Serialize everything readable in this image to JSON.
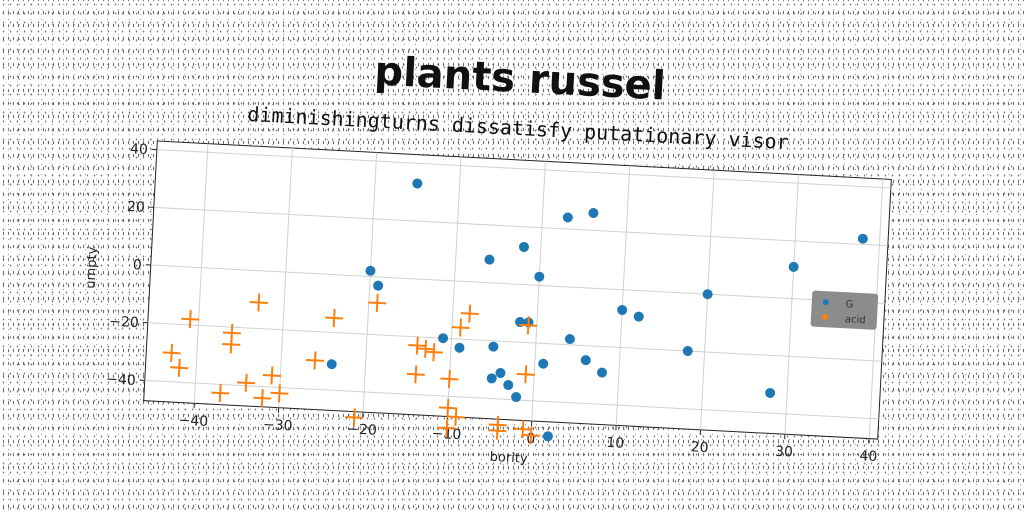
{
  "chart_data": {
    "type": "scatter",
    "title": "plants russel",
    "subtitle": "diminishingturns dissatisfy putationary visor",
    "xlabel": "bority",
    "ylabel": "umpty",
    "xlim": [
      -46,
      41
    ],
    "ylim": [
      -47,
      43
    ],
    "xticks": [
      -40,
      -30,
      -20,
      -10,
      0,
      10,
      20,
      30,
      40
    ],
    "yticks": [
      -40,
      -20,
      0,
      20,
      40
    ],
    "grid": true,
    "legend_position": "right",
    "series": [
      {
        "name": "G",
        "marker": "circle",
        "color": "#1f77b4",
        "points": [
          [
            -15,
            33
          ],
          [
            3,
            24
          ],
          [
            6,
            26
          ],
          [
            38,
            22
          ],
          [
            -2,
            13
          ],
          [
            30,
            11
          ],
          [
            -6,
            8
          ],
          [
            -20,
            2
          ],
          [
            0,
            3
          ],
          [
            -19,
            -3
          ],
          [
            20,
            0
          ],
          [
            10,
            -7
          ],
          [
            12,
            -9
          ],
          [
            -2,
            -13
          ],
          [
            -1,
            -13
          ],
          [
            -11,
            -20
          ],
          [
            4,
            -18
          ],
          [
            18,
            -20
          ],
          [
            -5,
            -22
          ],
          [
            -9,
            -23
          ],
          [
            -24,
            -31
          ],
          [
            6,
            -25
          ],
          [
            -4,
            -31
          ],
          [
            8,
            -29
          ],
          [
            1,
            -27
          ],
          [
            -5,
            -33
          ],
          [
            -3,
            -35
          ],
          [
            -2,
            -39
          ],
          [
            28,
            -33
          ],
          [
            2,
            -52
          ]
        ]
      },
      {
        "name": "acid",
        "marker": "plus",
        "color": "#ff7f0e",
        "points": [
          [
            -33,
            -11
          ],
          [
            -41,
            -18
          ],
          [
            -19,
            -9
          ],
          [
            -24,
            -15
          ],
          [
            -8,
            -11
          ],
          [
            -9,
            -16
          ],
          [
            -1,
            -14
          ],
          [
            -36,
            -22
          ],
          [
            -36,
            -26
          ],
          [
            -14,
            -23
          ],
          [
            -13,
            -24
          ],
          [
            -12,
            -25
          ],
          [
            -43,
            -30
          ],
          [
            -42,
            -35
          ],
          [
            -31,
            -36
          ],
          [
            -34,
            -39
          ],
          [
            -30,
            -42
          ],
          [
            -32,
            -44
          ],
          [
            -37,
            -43
          ],
          [
            -26,
            -30
          ],
          [
            -14,
            -33
          ],
          [
            -10,
            -34
          ],
          [
            -1,
            -31
          ],
          [
            -10,
            -44
          ],
          [
            -9,
            -47
          ],
          [
            -21,
            -49
          ],
          [
            -10,
            -51
          ],
          [
            -4,
            -49
          ],
          [
            -4,
            -51
          ],
          [
            -1,
            -50
          ],
          [
            0,
            -52
          ]
        ]
      }
    ],
    "colors": {
      "G": "#1f77b4",
      "acid": "#ff7f0e",
      "grid": "#d0d0d0",
      "legend_bg": "#8c8c8c"
    }
  }
}
